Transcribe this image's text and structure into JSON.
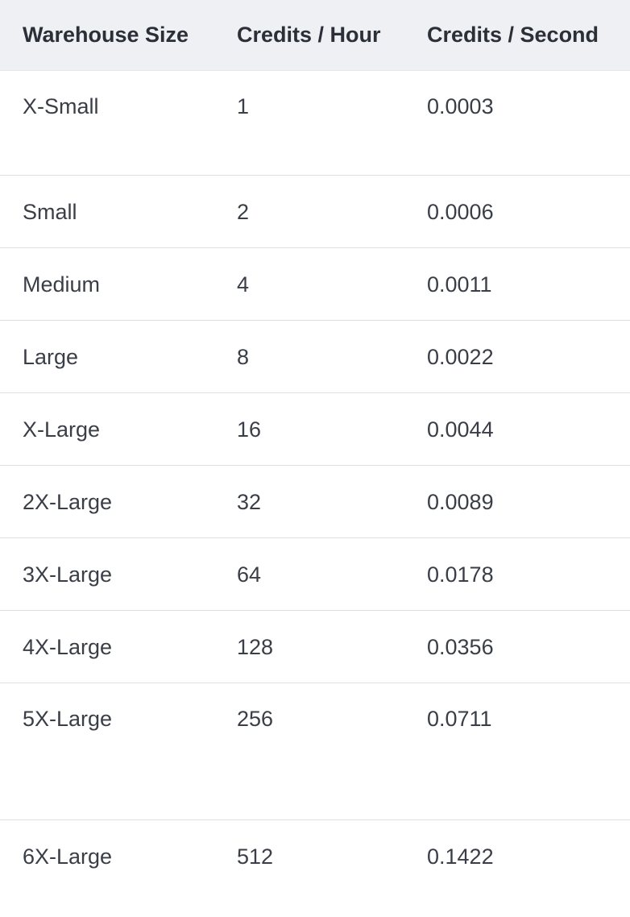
{
  "table": {
    "headers": [
      "Warehouse Size",
      "Credits / Hour",
      "Credits / Second"
    ],
    "rows": [
      {
        "size": "X-Small",
        "credits_hour": "1",
        "credits_second": "0.0003"
      },
      {
        "size": "Small",
        "credits_hour": "2",
        "credits_second": "0.0006"
      },
      {
        "size": "Medium",
        "credits_hour": "4",
        "credits_second": "0.0011"
      },
      {
        "size": "Large",
        "credits_hour": "8",
        "credits_second": "0.0022"
      },
      {
        "size": "X-Large",
        "credits_hour": "16",
        "credits_second": "0.0044"
      },
      {
        "size": "2X-Large",
        "credits_hour": "32",
        "credits_second": "0.0089"
      },
      {
        "size": "3X-Large",
        "credits_hour": "64",
        "credits_second": "0.0178"
      },
      {
        "size": "4X-Large",
        "credits_hour": "128",
        "credits_second": "0.0356"
      },
      {
        "size": "5X-Large",
        "credits_hour": "256",
        "credits_second": "0.0711"
      },
      {
        "size": "6X-Large",
        "credits_hour": "512",
        "credits_second": "0.1422"
      }
    ]
  },
  "colors": {
    "header_background": "#eef0f3",
    "row_divider": "#dcdfe5",
    "text": "#2b2f38"
  }
}
